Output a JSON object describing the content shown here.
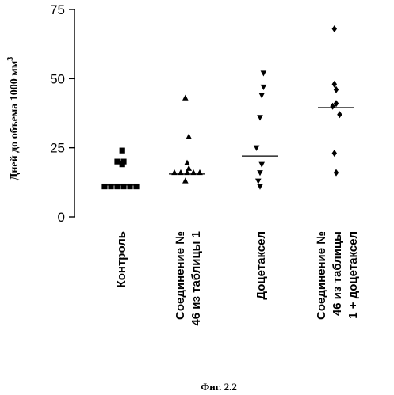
{
  "chart_data": {
    "type": "scatter",
    "ylabel": "Дней до объема 1000 мм",
    "ylabel_superscript": "3",
    "ylim": [
      0,
      75
    ],
    "yticks": [
      0,
      25,
      50,
      75
    ],
    "grid": false,
    "caption": "Фиг. 2.2",
    "groups": [
      {
        "label_lines": [
          "Контроль"
        ],
        "marker": "square",
        "values": [
          24,
          20,
          20,
          19,
          11,
          11,
          11,
          11,
          11,
          11
        ],
        "median": 11.5
      },
      {
        "label_lines": [
          "Соединение №",
          "46 из таблицы 1"
        ],
        "marker": "triangle-up",
        "values": [
          43,
          29,
          19.5,
          17.5,
          16,
          16,
          16,
          16,
          16,
          13
        ],
        "median": 15.5
      },
      {
        "label_lines": [
          "Доцетаксел"
        ],
        "marker": "triangle-down",
        "values": [
          52,
          47,
          44,
          36,
          25,
          19,
          16,
          13,
          11
        ],
        "median": 22
      },
      {
        "label_lines": [
          "Соединение №",
          "46 из таблицы",
          "1 + доцетаксел"
        ],
        "marker": "diamond",
        "values": [
          68,
          48,
          46,
          41,
          40,
          37,
          23,
          16
        ],
        "median": 39.5
      }
    ]
  }
}
